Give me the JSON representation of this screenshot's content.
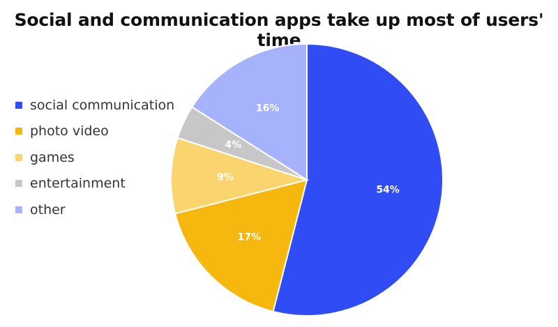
{
  "chart_data": {
    "type": "pie",
    "title": "Social and communication apps take up most of users' time",
    "slices": [
      {
        "label": "social communication",
        "value": 54,
        "display": "54%",
        "color": "#2f4cf5"
      },
      {
        "label": "photo video",
        "value": 17,
        "display": "17%",
        "color": "#f6b80f"
      },
      {
        "label": "games",
        "value": 9,
        "display": "9%",
        "color": "#fad46f"
      },
      {
        "label": "entertainment",
        "value": 4,
        "display": "4%",
        "color": "#c7c7c7"
      },
      {
        "label": "other",
        "value": 16,
        "display": "16%",
        "color": "#a6b2fb"
      }
    ],
    "legend_position": "left"
  }
}
